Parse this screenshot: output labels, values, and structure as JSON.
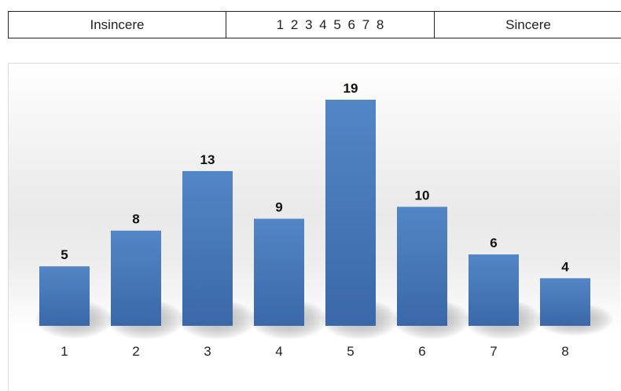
{
  "scale": {
    "left_label": "Insincere",
    "numbers": "1 2 3 4 5 6 7 8",
    "right_label": "Sincere"
  },
  "colors": {
    "bar_top": "#5386c6",
    "bar_bottom": "#3a68a8",
    "shadow": "#9a9a9a"
  },
  "chart_data": {
    "type": "bar",
    "title": "",
    "xlabel": "",
    "ylabel": "",
    "categories": [
      "1",
      "2",
      "3",
      "4",
      "5",
      "6",
      "7",
      "8"
    ],
    "values": [
      5,
      8,
      13,
      9,
      19,
      10,
      6,
      4
    ],
    "ylim": [
      0,
      19
    ],
    "grid": false,
    "legend": "none",
    "data_labels": true
  }
}
